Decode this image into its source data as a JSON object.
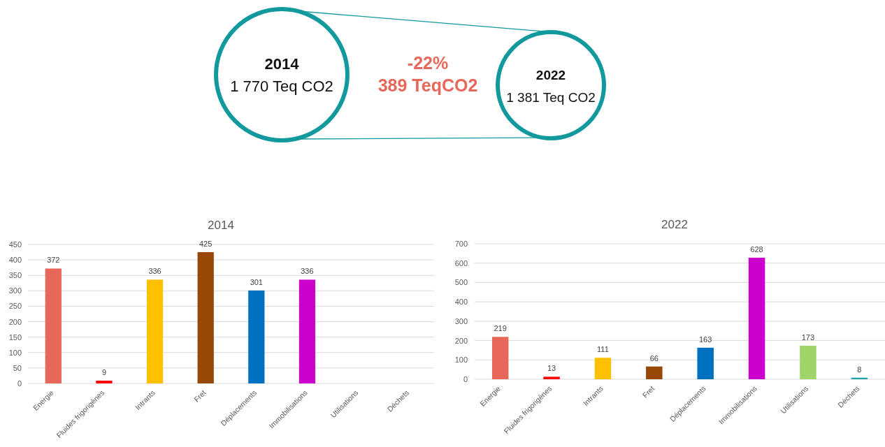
{
  "chart_data": [
    {
      "type": "other",
      "annotations": [
        "2014",
        "1 770 Teq CO2",
        "-22%",
        "389 TeqCO2",
        "2022",
        "1 381 Teq CO2"
      ]
    },
    {
      "type": "bar",
      "title": "2014",
      "categories": [
        "Energie",
        "Fluides frigorigènes",
        "Intrants",
        "Fret",
        "Déplacements",
        "Immobilisations",
        "Utilisations",
        "Déchets"
      ],
      "values": [
        372,
        9,
        336,
        425,
        301,
        336,
        null,
        null
      ],
      "colors": [
        "#e8675b",
        "#ff0000",
        "#ffc000",
        "#974706",
        "#0070c0",
        "#cc00cc",
        null,
        null
      ],
      "ylim": [
        0,
        450
      ],
      "yticks": [
        0,
        50,
        100,
        150,
        200,
        250,
        300,
        350,
        400,
        450
      ],
      "grid": "y",
      "data_labels": true
    },
    {
      "type": "bar",
      "title": "2022",
      "categories": [
        "Energie",
        "Fluides frigorigènes",
        "Intrants",
        "Fret",
        "Déplacements",
        "Immobilisations",
        "Utilisations",
        "Déchets"
      ],
      "values": [
        219,
        13,
        111,
        66,
        163,
        628,
        173,
        8
      ],
      "colors": [
        "#e8675b",
        "#ff0000",
        "#ffc000",
        "#974706",
        "#0070c0",
        "#cc00cc",
        "#9fd468",
        "#1aa3a8"
      ],
      "ylim": [
        0,
        700
      ],
      "yticks": [
        0,
        100,
        200,
        300,
        400,
        500,
        600,
        700
      ],
      "grid": "y",
      "data_labels": true
    }
  ]
}
